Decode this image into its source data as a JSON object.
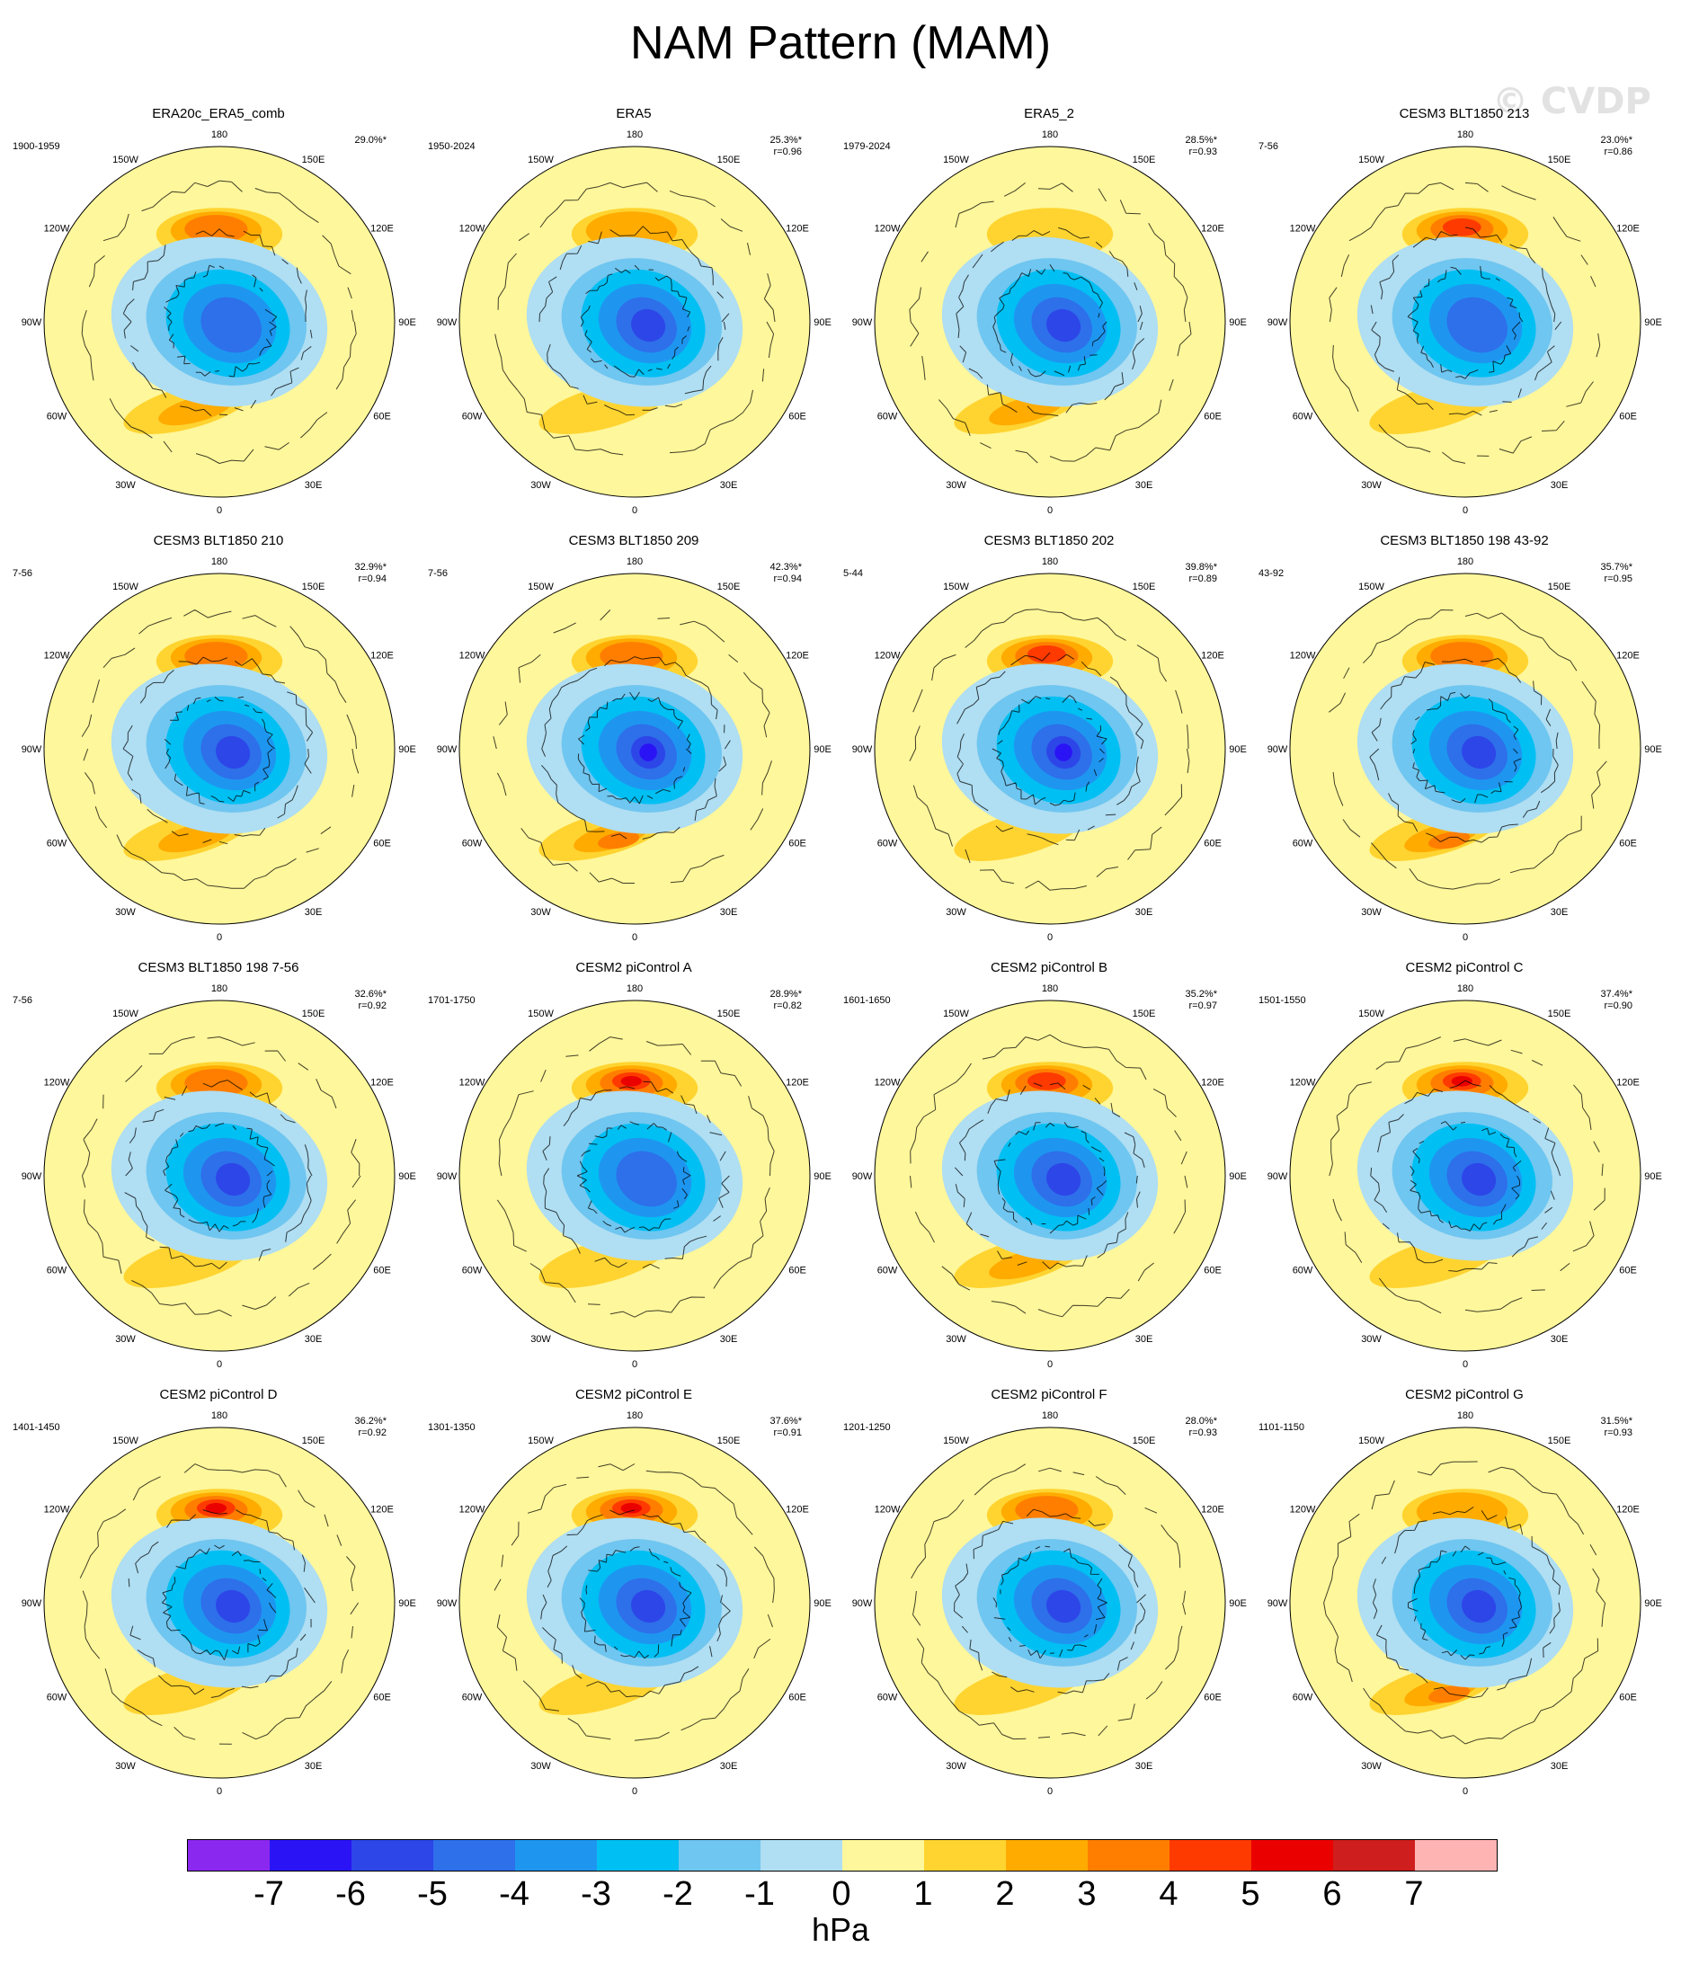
{
  "title": "NAM Pattern (MAM)",
  "watermark": "© CVDP",
  "lon_labels": [
    "180",
    "150E",
    "120E",
    "90E",
    "60E",
    "30E",
    "0",
    "30W",
    "60W",
    "90W",
    "120W",
    "150W"
  ],
  "colors": {
    "levels": [
      "#8b28f0",
      "#2a14f5",
      "#2d46e8",
      "#2e6fea",
      "#1e96f0",
      "#00bff3",
      "#6fc6f0",
      "#b0def2",
      "#fff79b",
      "#ffd430",
      "#ffab00",
      "#ff7e00",
      "#ff3a00",
      "#eb0000",
      "#cf1e1e",
      "#ffb4b4"
    ],
    "background": "#ffffff",
    "coast": "#000000"
  },
  "colorbar": {
    "ticks": [
      "-7",
      "-6",
      "-5",
      "-4",
      "-3",
      "-2",
      "-1",
      "0",
      "1",
      "2",
      "3",
      "4",
      "5",
      "6",
      "7"
    ],
    "unit": "hPa"
  },
  "panels": [
    {
      "title": "ERA20c_ERA5_comb",
      "period": "1900-1959",
      "pct": "29.0%*",
      "r": ""
    },
    {
      "title": "ERA5",
      "period": "1950-2024",
      "pct": "25.3%*",
      "r": "r=0.96"
    },
    {
      "title": "ERA5_2",
      "period": "1979-2024",
      "pct": "28.5%*",
      "r": "r=0.93"
    },
    {
      "title": "CESM3 BLT1850 213",
      "period": "7-56",
      "pct": "23.0%*",
      "r": "r=0.86"
    },
    {
      "title": "CESM3 BLT1850 210",
      "period": "7-56",
      "pct": "32.9%*",
      "r": "r=0.94"
    },
    {
      "title": "CESM3 BLT1850 209",
      "period": "7-56",
      "pct": "42.3%*",
      "r": "r=0.94"
    },
    {
      "title": "CESM3 BLT1850 202",
      "period": "5-44",
      "pct": "39.8%*",
      "r": "r=0.89"
    },
    {
      "title": "CESM3 BLT1850 198 43-92",
      "period": "43-92",
      "pct": "35.7%*",
      "r": "r=0.95"
    },
    {
      "title": "CESM3 BLT1850 198 7-56",
      "period": "7-56",
      "pct": "32.6%*",
      "r": "r=0.92"
    },
    {
      "title": "CESM2 piControl A",
      "period": "1701-1750",
      "pct": "28.9%*",
      "r": "r=0.82"
    },
    {
      "title": "CESM2 piControl B",
      "period": "1601-1650",
      "pct": "35.2%*",
      "r": "r=0.97"
    },
    {
      "title": "CESM2 piControl C",
      "period": "1501-1550",
      "pct": "37.4%*",
      "r": "r=0.90"
    },
    {
      "title": "CESM2 piControl D",
      "period": "1401-1450",
      "pct": "36.2%*",
      "r": "r=0.92"
    },
    {
      "title": "CESM2 piControl E",
      "period": "1301-1350",
      "pct": "37.6%*",
      "r": "r=0.91"
    },
    {
      "title": "CESM2 piControl F",
      "period": "1201-1250",
      "pct": "28.0%*",
      "r": "r=0.93"
    },
    {
      "title": "CESM2 piControl G",
      "period": "1101-1150",
      "pct": "31.5%*",
      "r": "r=0.93"
    }
  ]
}
